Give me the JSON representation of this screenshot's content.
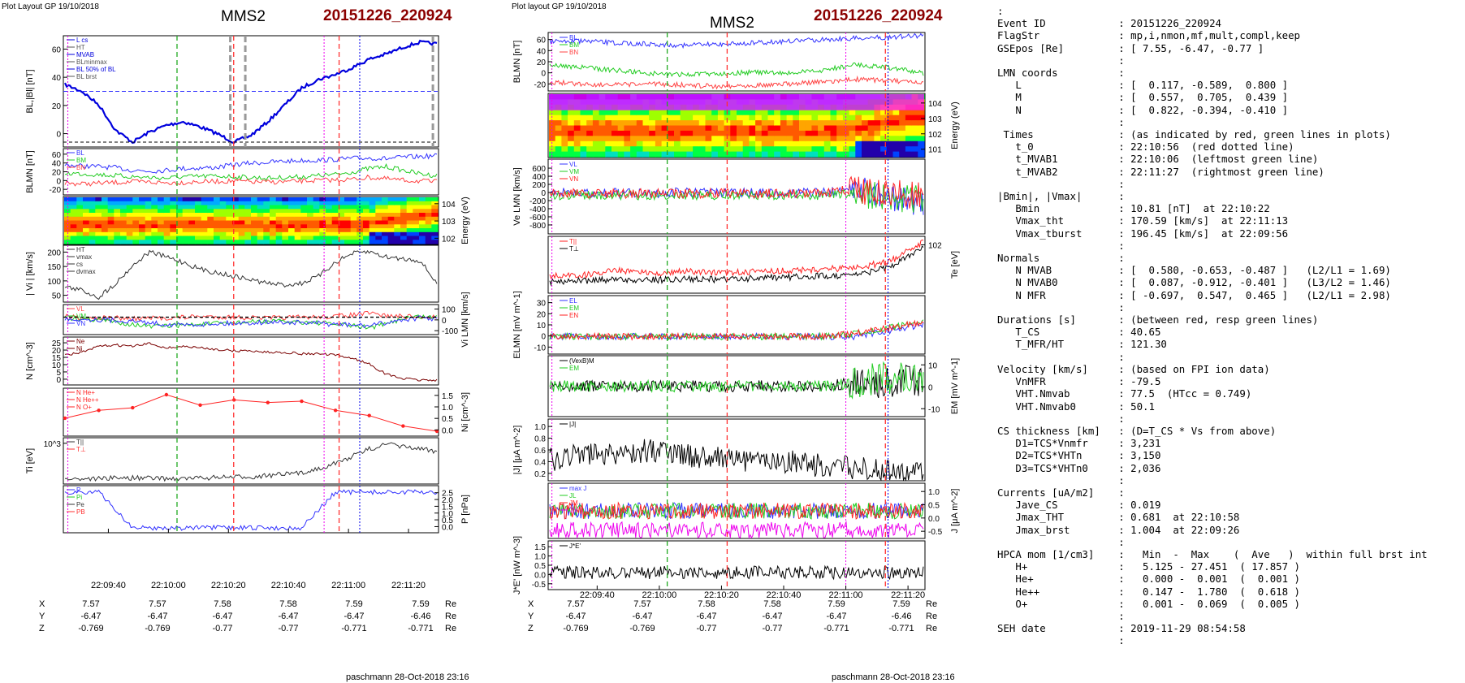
{
  "left": {
    "layout_label": "Plot Layout GP 19/10/2018",
    "spacecraft": "MMS2",
    "event": "20151226_220924",
    "footer": "paschmann 28-Oct-2018 23:16",
    "time_ticks": [
      "22:09:40",
      "22:10:00",
      "22:10:20",
      "22:10:40",
      "22:11:00",
      "22:11:20"
    ],
    "pos_rows": [
      {
        "label": "X",
        "values": [
          "7.57",
          "7.57",
          "7.58",
          "7.58",
          "7.59",
          "7.59"
        ],
        "unit": "Re"
      },
      {
        "label": "Y",
        "values": [
          "-6.47",
          "-6.47",
          "-6.47",
          "-6.47",
          "-6.47",
          "-6.46"
        ],
        "unit": "Re"
      },
      {
        "label": "Z",
        "values": [
          "-0.769",
          "-0.769",
          "-0.77",
          "-0.77",
          "-0.771",
          "-0.771"
        ],
        "unit": "Re"
      }
    ],
    "panels": [
      {
        "id": "p1",
        "ylabel": "BL,|Bl| [nT]",
        "ticks": [
          "60",
          "40",
          "20",
          "0"
        ],
        "legend": [
          "L cs",
          "HT",
          "MVAB",
          "BLminmax",
          "BL 50% of BL",
          "BL brst"
        ]
      },
      {
        "id": "p2",
        "ylabel": "BLMN [nT]",
        "ticks": [
          "60",
          "40",
          "20",
          "0",
          "-20"
        ],
        "legend": [
          "BL",
          "BM",
          "BN"
        ]
      },
      {
        "id": "p3",
        "ylabel_right": "Energy (eV)",
        "ticks_right": [
          "10^4",
          "10^3",
          "10^2"
        ]
      },
      {
        "id": "p4",
        "ylabel": "| Vi | [km/s]",
        "ticks": [
          "200",
          "150",
          "100",
          "50"
        ],
        "legend": [
          "HT",
          "vmax",
          "cs",
          "dvmax"
        ]
      },
      {
        "id": "p5",
        "ylabel_right": "Vi LMN [km/s]",
        "ticks_right": [
          "100",
          "0",
          "-100"
        ],
        "legend": [
          "VL",
          "VM",
          "VN"
        ]
      },
      {
        "id": "p6",
        "ylabel": "N [cm^-3]",
        "ticks": [
          "25",
          "20",
          "15",
          "10",
          "5",
          "0"
        ],
        "legend": [
          "Ne",
          "Ni"
        ]
      },
      {
        "id": "p7",
        "ylabel_right": "Ni [cm^-3]",
        "ticks_right": [
          "1.5",
          "1.0",
          "0.5",
          "0.0"
        ],
        "legend": [
          "N He+",
          "N He++",
          "N O+"
        ]
      },
      {
        "id": "p8",
        "ylabel": "Ti [eV]",
        "ticks": [
          "10^3"
        ],
        "legend": [
          "T||",
          "T⊥"
        ]
      },
      {
        "id": "p9",
        "ylabel_right": "P [nPa]",
        "ticks_right": [
          "2.5",
          "2.0",
          "1.5",
          "1.0",
          "0.5",
          "0.0"
        ],
        "legend": [
          "P",
          "Pi",
          "Pe",
          "PB"
        ]
      }
    ]
  },
  "mid": {
    "layout_label": "Plot layout GP 19/10/2018",
    "spacecraft": "MMS2",
    "event": "20151226_220924",
    "footer": "paschmann 28-Oct-2018 23:16",
    "time_ticks": [
      "22:09:40",
      "22:10:00",
      "22:10:20",
      "22:10:40",
      "22:11:00",
      "22:11:20"
    ],
    "pos_rows": [
      {
        "label": "X",
        "values": [
          "7.57",
          "7.57",
          "7.58",
          "7.58",
          "7.59",
          "7.59"
        ],
        "unit": "Re"
      },
      {
        "label": "Y",
        "values": [
          "-6.47",
          "-6.47",
          "-6.47",
          "-6.47",
          "-6.47",
          "-6.46"
        ],
        "unit": "Re"
      },
      {
        "label": "Z",
        "values": [
          "-0.769",
          "-0.769",
          "-0.77",
          "-0.77",
          "-0.771",
          "-0.771"
        ],
        "unit": "Re"
      }
    ],
    "panels": [
      {
        "id": "m1",
        "ylabel": "BLMN [nT]",
        "ticks": [
          "60",
          "40",
          "20",
          "0",
          "-20"
        ],
        "legend": [
          "BL",
          "BM",
          "BN"
        ]
      },
      {
        "id": "m2",
        "ylabel_right": "Energy (eV)",
        "ticks_right": [
          "10^4",
          "10^3",
          "10^2",
          "10^1"
        ]
      },
      {
        "id": "m3",
        "ylabel": "Ve LMN [km/s]",
        "ticks": [
          "600",
          "400",
          "200",
          "0",
          "-200",
          "-400",
          "-600",
          "-800"
        ],
        "legend": [
          "VL",
          "VM",
          "VN"
        ]
      },
      {
        "id": "m4",
        "ylabel_right": "Te [eV]",
        "ticks_right": [
          "10^2"
        ],
        "legend": [
          "T||",
          "T⊥"
        ]
      },
      {
        "id": "m5",
        "ylabel": "ELMN [mV m^-1]",
        "ticks": [
          "30",
          "20",
          "10",
          "0",
          "-10"
        ],
        "legend": [
          "EL",
          "EM",
          "EN"
        ]
      },
      {
        "id": "m6",
        "ylabel_right": "EM [mV m^-1]",
        "ticks_right": [
          "10",
          "0",
          "-10"
        ],
        "legend": [
          "(VexB)M",
          "EM"
        ]
      },
      {
        "id": "m7",
        "ylabel": "|J| [μA m^-2]",
        "ticks": [
          "1.0",
          "0.8",
          "0.6",
          "0.4",
          "0.2"
        ],
        "legend": [
          "|J|"
        ]
      },
      {
        "id": "m8",
        "ylabel_right": "J [μA m^-2]",
        "ticks_right": [
          "1.0",
          "0.5",
          "0.0",
          "-0.5"
        ],
        "legend": [
          "max J",
          "JL",
          "JM",
          "JN"
        ]
      },
      {
        "id": "m9",
        "ylabel": "J*E' [nW m^-3]",
        "ticks": [
          "1.5",
          "1.0",
          "0.5",
          "0.0",
          "-0.5"
        ],
        "legend": [
          "J*E'"
        ]
      }
    ]
  },
  "info_lines": [
    ":",
    "Event ID            : 20151226_220924",
    "FlagStr             : mp,i,nmon,mf,mult,compl,keep",
    "GSEpos [Re]         : [ 7.55, -6.47, -0.77 ]",
    "                    :",
    "LMN coords          :",
    "   L                : [  0.117, -0.589,  0.800 ]",
    "   M                : [  0.557,  0.705,  0.439 ]",
    "   N                : [  0.822, -0.394, -0.410 ]",
    "                    :",
    " Times              : (as indicated by red, green lines in plots)",
    "   t_0              : 22:10:56  (red dotted line)",
    "   t_MVAB1          : 22:10:06  (leftmost green line)",
    "   t_MVAB2          : 22:11:27  (rightmost green line)",
    "                    :",
    "|Bmin|, |Vmax|      :",
    "   Bmin             : 10.81 [nT]  at 22:10:22",
    "   Vmax_tht         : 170.59 [km/s]  at 22:11:13",
    "   Vmax_tburst      : 196.45 [km/s]  at 22:09:56",
    "                    :",
    "Normals             :",
    "   N MVAB           : [  0.580, -0.653, -0.487 ]   (L2/L1 = 1.69)",
    "   N MVAB0          : [  0.087, -0.912, -0.401 ]   (L3/L2 = 1.46)",
    "   N MFR            : [ -0.697,  0.547,  0.465 ]   (L2/L1 = 2.98)",
    "                    :",
    "Durations [s]       : (between red, resp green lines)",
    "   T_CS             : 40.65",
    "   T_MFR/HT         : 121.30",
    "                    :",
    "Velocity [km/s]     : (based on FPI ion data)",
    "   VnMFR            : -79.5",
    "   VHT.Nmvab        : 77.5  (HTcc = 0.749)",
    "   VHT.Nmvab0       : 50.1",
    "                    :",
    "CS thickness [km]   : (D=T_CS * Vs from above)",
    "   D1=TCS*Vnmfr     : 3,231",
    "   D2=TCS*VHTn      : 3,150",
    "   D3=TCS*VHTn0     : 2,036",
    "                    :",
    "Currents [uA/m2]    :",
    "   Jave_CS          : 0.019",
    "   Jmax_THT         : 0.681  at 22:10:58",
    "   Jmax_brst        : 1.004  at 22:09:26",
    "                    :",
    "HPCA mom [1/cm3]    :   Min  -  Max    (  Ave   )  within full brst int",
    "   H+               :   5.125 - 27.451  ( 17.857 )",
    "   He+              :   0.000 -  0.001  (  0.001 )",
    "   He++             :   0.147 -  1.780  (  0.618 )",
    "   O+               :   0.001 -  0.069  (  0.005 )",
    "                    :",
    "SEH date            : 2019-11-29 08:54:58",
    "                    :"
  ],
  "chart_data": [
    {
      "type": "line",
      "title": "MMS2 20151226_220924",
      "time_range": [
        "22:09:25",
        "22:11:28"
      ],
      "vertical_markers": [
        "22:10:06 (green)",
        "22:10:26 (red)",
        "22:11:06 (red)",
        "22:11:17 (blue dotted)",
        "22:11:00 (magenta dotted)"
      ],
      "series": [
        {
          "name": "BL brst",
          "panel": "p1",
          "values": [
            42,
            38,
            30,
            15,
            8,
            14,
            18,
            20,
            17,
            13,
            8,
            12,
            20,
            30,
            40,
            45,
            48,
            52,
            57,
            60,
            64,
            67,
            66
          ]
        },
        {
          "name": "BL",
          "panel": "p2",
          "values": [
            45,
            42,
            40,
            37,
            30,
            28,
            30,
            35,
            36,
            38,
            45,
            50,
            52,
            55,
            57,
            58,
            60,
            63,
            64,
            62,
            66,
            68,
            70
          ]
        },
        {
          "name": "BM",
          "panel": "p2",
          "values": [
            22,
            20,
            18,
            15,
            12,
            10,
            8,
            12,
            13,
            14,
            12,
            10,
            8,
            10,
            12,
            15,
            18,
            25,
            35,
            40,
            30,
            20,
            15
          ]
        },
        {
          "name": "BN",
          "panel": "p2",
          "values": [
            -5,
            -8,
            -6,
            -4,
            -2,
            -3,
            -5,
            -4,
            -2,
            -1,
            0,
            -2,
            -3,
            -2,
            0,
            2,
            3,
            5,
            10,
            6,
            2,
            0,
            -2
          ]
        },
        {
          "name": "|Vi|",
          "panel": "p4",
          "values": [
            90,
            80,
            60,
            100,
            150,
            190,
            175,
            160,
            140,
            130,
            120,
            110,
            100,
            95,
            100,
            120,
            160,
            185,
            190,
            175,
            170,
            165,
            100
          ]
        },
        {
          "name": "VL",
          "panel": "p5",
          "values": [
            40,
            30,
            25,
            20,
            10,
            15,
            20,
            30,
            40,
            35,
            30,
            25,
            20,
            25,
            30,
            35,
            40,
            60,
            80,
            50,
            40,
            30,
            40
          ]
        },
        {
          "name": "VM",
          "panel": "p5",
          "values": [
            20,
            10,
            0,
            -30,
            -60,
            -90,
            -80,
            -70,
            -60,
            -50,
            -40,
            -30,
            -20,
            -25,
            -30,
            -40,
            -60,
            -80,
            -100,
            -60,
            20,
            40,
            30
          ]
        },
        {
          "name": "VN",
          "panel": "p5",
          "values": [
            10,
            5,
            0,
            -10,
            -20,
            -40,
            -60,
            -70,
            -60,
            -50,
            -45,
            -40,
            -30,
            -35,
            -40,
            -50,
            -60,
            -70,
            -80,
            -40,
            0,
            20,
            10
          ]
        },
        {
          "name": "Ni",
          "panel": "p6",
          "values": [
            18,
            20,
            24,
            25,
            24,
            26,
            23,
            24,
            23,
            22,
            21,
            21,
            20,
            20,
            19,
            19,
            18,
            16,
            12,
            5,
            2,
            1,
            1
          ]
        },
        {
          "name": "N He++",
          "panel": "p7",
          "values": [
            0.6,
            0.9,
            1.0,
            1.5,
            1.1,
            1.3,
            1.2,
            1.25,
            0.9,
            0.7,
            0.3,
            0.1
          ]
        },
        {
          "name": "T||",
          "panel": "p8",
          "values": [
            250,
            270,
            280,
            300,
            300,
            290,
            280,
            270,
            300,
            320,
            330,
            350,
            400,
            450,
            500,
            700,
            900,
            1200,
            1500,
            1700,
            1600,
            1500,
            1400
          ]
        },
        {
          "name": "P",
          "panel": "p9",
          "values": [
            2.1,
            2.1,
            2.1,
            2.05,
            2.0,
            2.0,
            2.0,
            2.0,
            2.0,
            2.0,
            2.0,
            2.0,
            2.0,
            2.0,
            2.0,
            2.05,
            2.1,
            2.1,
            2.1,
            2.1,
            2.1,
            2.1,
            2.1
          ]
        }
      ]
    }
  ]
}
